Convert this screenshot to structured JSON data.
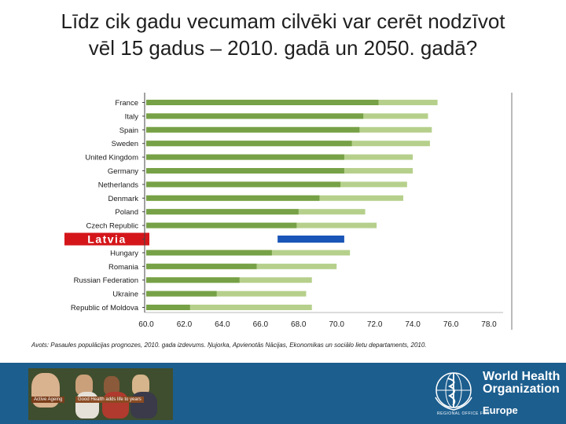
{
  "slide": {
    "title_lines": [
      "Līdz cik gadu vecumam cilvēki var cerēt nodzīvot",
      "vēl 15 gadus – 2010. gadā un 2050. gadā?"
    ],
    "source": "Avots: Pasaules populācijas prognozes, 2010. gada izdevums. Ņujorka, Apvienotās Nācijas, Ekonomikas un sociālo lietu departaments, 2010."
  },
  "colors": {
    "bar_2010": "#77a146",
    "bar_2050": "#b6d08c",
    "bar_highlight": "#1a55b8",
    "label_highlight_bg": "#d4161a",
    "footer": "#1c5e8e"
  },
  "footer": {
    "photo_tags": [
      "Active Ageing",
      "Good Health adds life to years"
    ],
    "org_name_lines": [
      "World Health",
      "Organization"
    ],
    "region_small": "REGIONAL OFFICE FOR",
    "region": "Europe"
  },
  "chart_data": {
    "type": "bar",
    "orientation": "horizontal",
    "stacked_overlay": true,
    "categories": [
      "France",
      "Italy",
      "Spain",
      "Sweden",
      "United Kingdom",
      "Germany",
      "Netherlands",
      "Denmark",
      "Poland",
      "Czech Republic",
      "Latvia",
      "Hungary",
      "Romania",
      "Russian Federation",
      "Ukraine",
      "Republic of Moldova"
    ],
    "highlight_category": "Latvia",
    "series": [
      {
        "values": [
          72.2,
          71.4,
          71.2,
          70.8,
          70.4,
          70.4,
          70.2,
          69.1,
          68.0,
          67.9,
          66.9,
          66.6,
          65.8,
          64.9,
          63.7,
          62.3
        ]
      },
      {
        "values": [
          75.3,
          74.8,
          75.0,
          74.9,
          74.0,
          74.0,
          73.7,
          73.5,
          71.5,
          72.1,
          70.4,
          70.7,
          70.0,
          68.7,
          68.4,
          68.7
        ]
      }
    ],
    "xlim": [
      60,
      78
    ],
    "xticks": [
      "60.0",
      "62.0",
      "64.0",
      "66.0",
      "68.0",
      "70.0",
      "72.0",
      "74.0",
      "76.0",
      "78.0"
    ],
    "grid": false
  }
}
